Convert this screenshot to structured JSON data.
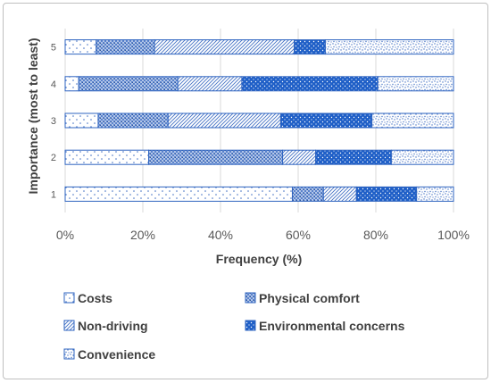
{
  "chart_data": {
    "type": "bar",
    "orientation": "horizontal",
    "stacked": "100%",
    "title": "",
    "xlabel": "Frequency (%)",
    "ylabel": "Importance (most to least)",
    "xlim": [
      0,
      100
    ],
    "x_ticks": [
      "0%",
      "20%",
      "40%",
      "60%",
      "80%",
      "100%"
    ],
    "grid": "vertical",
    "legend_position": "bottom",
    "categories": [
      "1",
      "2",
      "3",
      "4",
      "5"
    ],
    "series": [
      {
        "name": "Costs",
        "values": [
          58.5,
          21.5,
          8.5,
          3.5,
          8
        ],
        "color": "#4472c4",
        "pattern": "sparse-dots"
      },
      {
        "name": "Physical comfort",
        "values": [
          8,
          34.5,
          18,
          25.5,
          15
        ],
        "color": "#4472c4",
        "pattern": "cross-hatch"
      },
      {
        "name": "Non-driving",
        "values": [
          8.5,
          8.5,
          29,
          16.5,
          36
        ],
        "color": "#4472c4",
        "pattern": "diagonal"
      },
      {
        "name": "Environmental concerns",
        "values": [
          15.5,
          19.5,
          23.5,
          35,
          8
        ],
        "color": "#1f5fc7",
        "pattern": "dense-dots"
      },
      {
        "name": "Convenience",
        "values": [
          9.5,
          16,
          21,
          19.5,
          33
        ],
        "color": "#4472c4",
        "pattern": "wave-dots"
      }
    ]
  }
}
